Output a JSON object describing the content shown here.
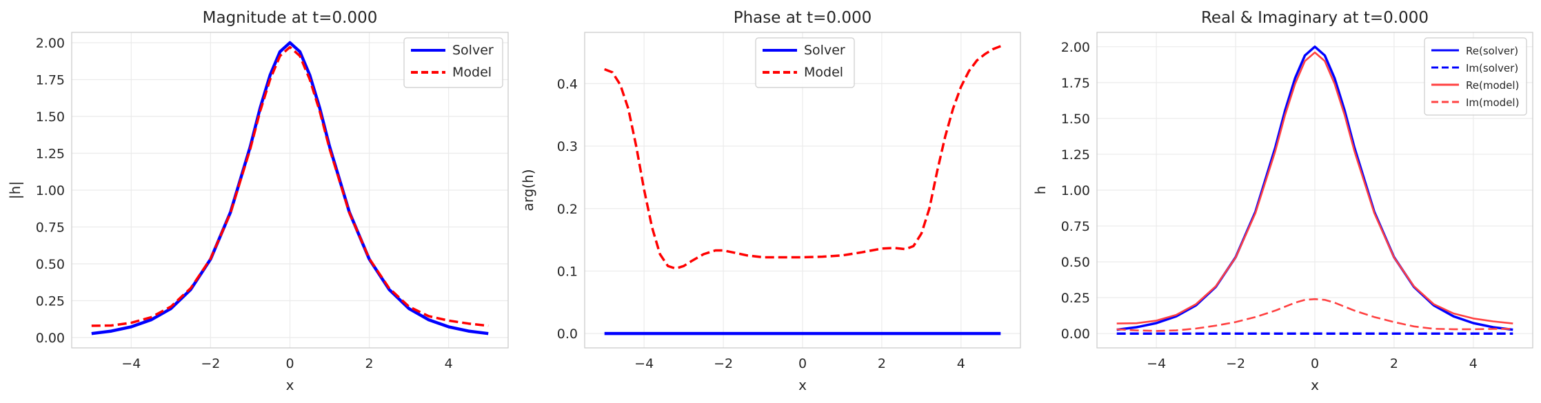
{
  "chart_data": [
    {
      "type": "line",
      "title": "Magnitude at t=0.000",
      "xlabel": "x",
      "ylabel": "|h|",
      "xlim": [
        -5.5,
        5.5
      ],
      "ylim": [
        -0.07,
        2.07
      ],
      "xticks": [
        -4,
        -2,
        0,
        2,
        4
      ],
      "xticklabels": [
        "−4",
        "−2",
        "0",
        "2",
        "4"
      ],
      "yticks": [
        0,
        0.25,
        0.5,
        0.75,
        1.0,
        1.25,
        1.5,
        1.75,
        2.0
      ],
      "yticklabels": [
        "0.00",
        "0.25",
        "0.50",
        "0.75",
        "1.00",
        "1.25",
        "1.50",
        "1.75",
        "2.00"
      ],
      "grid": true,
      "legend": "top-right",
      "series": [
        {
          "name": "Solver",
          "color": "#0000ff",
          "style": "solid",
          "points": [
            [
              -5,
              0.027
            ],
            [
              -4.5,
              0.044
            ],
            [
              -4,
              0.073
            ],
            [
              -3.5,
              0.12
            ],
            [
              -3,
              0.197
            ],
            [
              -2.5,
              0.326
            ],
            [
              -2,
              0.532
            ],
            [
              -1.5,
              0.849
            ],
            [
              -1,
              1.296
            ],
            [
              -0.75,
              1.557
            ],
            [
              -0.5,
              1.78
            ],
            [
              -0.25,
              1.939
            ],
            [
              0,
              2.0
            ],
            [
              0.25,
              1.939
            ],
            [
              0.5,
              1.78
            ],
            [
              0.75,
              1.557
            ],
            [
              1,
              1.296
            ],
            [
              1.5,
              0.849
            ],
            [
              2,
              0.532
            ],
            [
              2.5,
              0.326
            ],
            [
              3,
              0.197
            ],
            [
              3.5,
              0.12
            ],
            [
              4,
              0.073
            ],
            [
              4.5,
              0.044
            ],
            [
              5,
              0.027
            ]
          ]
        },
        {
          "name": "Model",
          "color": "#ff0000",
          "style": "dashed",
          "points": [
            [
              -5,
              0.08
            ],
            [
              -4.5,
              0.082
            ],
            [
              -4,
              0.1
            ],
            [
              -3.5,
              0.138
            ],
            [
              -3,
              0.21
            ],
            [
              -2.5,
              0.335
            ],
            [
              -2,
              0.535
            ],
            [
              -1.5,
              0.845
            ],
            [
              -1,
              1.28
            ],
            [
              -0.75,
              1.535
            ],
            [
              -0.5,
              1.75
            ],
            [
              -0.25,
              1.91
            ],
            [
              0,
              1.97
            ],
            [
              0.25,
              1.91
            ],
            [
              0.5,
              1.75
            ],
            [
              0.75,
              1.535
            ],
            [
              1,
              1.28
            ],
            [
              1.5,
              0.845
            ],
            [
              2,
              0.535
            ],
            [
              2.5,
              0.335
            ],
            [
              3,
              0.21
            ],
            [
              3.5,
              0.145
            ],
            [
              4,
              0.115
            ],
            [
              4.5,
              0.095
            ],
            [
              5,
              0.08
            ]
          ]
        }
      ]
    },
    {
      "type": "line",
      "title": "Phase at t=0.000",
      "xlabel": "x",
      "ylabel": "arg(h)",
      "xlim": [
        -5.5,
        5.5
      ],
      "ylim": [
        -0.023,
        0.482
      ],
      "xticks": [
        -4,
        -2,
        0,
        2,
        4
      ],
      "xticklabels": [
        "−4",
        "−2",
        "0",
        "2",
        "4"
      ],
      "yticks": [
        0,
        0.1,
        0.2,
        0.3,
        0.4
      ],
      "yticklabels": [
        "0.0",
        "0.1",
        "0.2",
        "0.3",
        "0.4"
      ],
      "grid": true,
      "legend": "top-center",
      "series": [
        {
          "name": "Solver",
          "color": "#0000ff",
          "style": "solid",
          "points": [
            [
              -5,
              0
            ],
            [
              5,
              0
            ]
          ]
        },
        {
          "name": "Model",
          "color": "#ff0000",
          "style": "dashed",
          "points": [
            [
              -5,
              0.423
            ],
            [
              -4.8,
              0.418
            ],
            [
              -4.6,
              0.398
            ],
            [
              -4.4,
              0.36
            ],
            [
              -4.2,
              0.3
            ],
            [
              -4,
              0.23
            ],
            [
              -3.8,
              0.17
            ],
            [
              -3.6,
              0.127
            ],
            [
              -3.4,
              0.108
            ],
            [
              -3.2,
              0.104
            ],
            [
              -3,
              0.108
            ],
            [
              -2.8,
              0.116
            ],
            [
              -2.5,
              0.127
            ],
            [
              -2.2,
              0.133
            ],
            [
              -2,
              0.133
            ],
            [
              -1.7,
              0.129
            ],
            [
              -1.4,
              0.125
            ],
            [
              -1,
              0.122
            ],
            [
              0,
              0.122
            ],
            [
              0.5,
              0.123
            ],
            [
              1,
              0.125
            ],
            [
              1.5,
              0.13
            ],
            [
              2,
              0.136
            ],
            [
              2.3,
              0.137
            ],
            [
              2.6,
              0.135
            ],
            [
              2.8,
              0.14
            ],
            [
              3,
              0.16
            ],
            [
              3.2,
              0.2
            ],
            [
              3.4,
              0.26
            ],
            [
              3.6,
              0.315
            ],
            [
              3.8,
              0.36
            ],
            [
              4,
              0.395
            ],
            [
              4.2,
              0.42
            ],
            [
              4.4,
              0.437
            ],
            [
              4.6,
              0.447
            ],
            [
              4.8,
              0.455
            ],
            [
              5,
              0.46
            ]
          ]
        }
      ]
    },
    {
      "type": "line",
      "title": "Real & Imaginary at t=0.000",
      "xlabel": "x",
      "ylabel": "h",
      "xlim": [
        -5.5,
        5.5
      ],
      "ylim": [
        -0.1,
        2.1
      ],
      "xticks": [
        -4,
        -2,
        0,
        2,
        4
      ],
      "xticklabels": [
        "−4",
        "−2",
        "0",
        "2",
        "4"
      ],
      "yticks": [
        0,
        0.25,
        0.5,
        0.75,
        1.0,
        1.25,
        1.5,
        1.75,
        2.0
      ],
      "yticklabels": [
        "0.00",
        "0.25",
        "0.50",
        "0.75",
        "1.00",
        "1.25",
        "1.50",
        "1.75",
        "2.00"
      ],
      "grid": true,
      "legend": "top-right",
      "series": [
        {
          "name": "Re(solver)",
          "color": "#0000ff",
          "style": "solid",
          "points": [
            [
              -5,
              0.027
            ],
            [
              -4.5,
              0.044
            ],
            [
              -4,
              0.073
            ],
            [
              -3.5,
              0.12
            ],
            [
              -3,
              0.197
            ],
            [
              -2.5,
              0.326
            ],
            [
              -2,
              0.532
            ],
            [
              -1.5,
              0.849
            ],
            [
              -1,
              1.296
            ],
            [
              -0.75,
              1.557
            ],
            [
              -0.5,
              1.78
            ],
            [
              -0.25,
              1.939
            ],
            [
              0,
              2.0
            ],
            [
              0.25,
              1.939
            ],
            [
              0.5,
              1.78
            ],
            [
              0.75,
              1.557
            ],
            [
              1,
              1.296
            ],
            [
              1.5,
              0.849
            ],
            [
              2,
              0.532
            ],
            [
              2.5,
              0.326
            ],
            [
              3,
              0.197
            ],
            [
              3.5,
              0.12
            ],
            [
              4,
              0.073
            ],
            [
              4.5,
              0.044
            ],
            [
              5,
              0.027
            ]
          ]
        },
        {
          "name": "Im(solver)",
          "color": "#0000ff",
          "style": "dashed",
          "points": [
            [
              -5,
              0
            ],
            [
              5,
              0
            ]
          ]
        },
        {
          "name": "Re(model)",
          "color": "#ff4040",
          "style": "solid",
          "points": [
            [
              -5,
              0.07
            ],
            [
              -4.5,
              0.072
            ],
            [
              -4,
              0.09
            ],
            [
              -3.5,
              0.13
            ],
            [
              -3,
              0.205
            ],
            [
              -2.5,
              0.33
            ],
            [
              -2,
              0.53
            ],
            [
              -1.5,
              0.84
            ],
            [
              -1,
              1.27
            ],
            [
              -0.75,
              1.525
            ],
            [
              -0.5,
              1.74
            ],
            [
              -0.25,
              1.9
            ],
            [
              0,
              1.96
            ],
            [
              0.25,
              1.9
            ],
            [
              0.5,
              1.74
            ],
            [
              0.75,
              1.525
            ],
            [
              1,
              1.27
            ],
            [
              1.5,
              0.84
            ],
            [
              2,
              0.53
            ],
            [
              2.5,
              0.33
            ],
            [
              3,
              0.205
            ],
            [
              3.5,
              0.14
            ],
            [
              4,
              0.105
            ],
            [
              4.5,
              0.085
            ],
            [
              5,
              0.07
            ]
          ]
        },
        {
          "name": "Im(model)",
          "color": "#ff4040",
          "style": "dashed",
          "points": [
            [
              -5,
              0.03
            ],
            [
              -4.5,
              0.022
            ],
            [
              -4,
              0.018
            ],
            [
              -3.5,
              0.022
            ],
            [
              -3,
              0.035
            ],
            [
              -2.5,
              0.055
            ],
            [
              -2,
              0.08
            ],
            [
              -1.5,
              0.115
            ],
            [
              -1,
              0.16
            ],
            [
              -0.5,
              0.215
            ],
            [
              -0.25,
              0.235
            ],
            [
              0,
              0.24
            ],
            [
              0.25,
              0.235
            ],
            [
              0.5,
              0.215
            ],
            [
              1,
              0.16
            ],
            [
              1.5,
              0.115
            ],
            [
              2,
              0.08
            ],
            [
              2.5,
              0.05
            ],
            [
              3,
              0.033
            ],
            [
              3.5,
              0.03
            ],
            [
              4,
              0.03
            ],
            [
              4.5,
              0.032
            ],
            [
              5,
              0.033
            ]
          ]
        }
      ]
    }
  ]
}
